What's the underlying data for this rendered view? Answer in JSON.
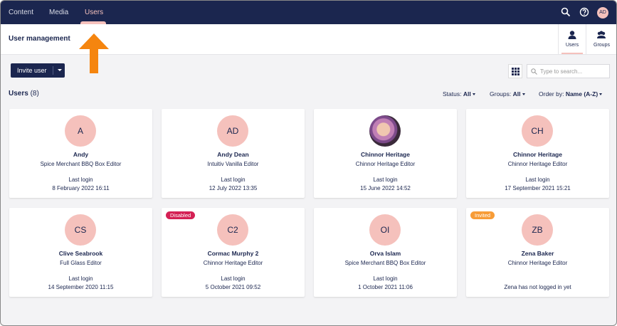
{
  "nav": {
    "items": [
      "Content",
      "Media",
      "Users"
    ],
    "avatar": "AD"
  },
  "header": {
    "title": "User management",
    "tabs": [
      "Users",
      "Groups"
    ]
  },
  "toolbar": {
    "button": "Invite user",
    "search_placeholder": "Type to search..."
  },
  "list": {
    "title": "Users",
    "count": "(8)",
    "filters": [
      {
        "label": "Status:",
        "value": "All"
      },
      {
        "label": "Groups:",
        "value": "All"
      },
      {
        "label": "Order by:",
        "value": "Name (A-Z)"
      }
    ]
  },
  "users": [
    {
      "initials": "A",
      "name": "Andy",
      "group": "Spice Merchant BBQ Box Editor",
      "last_login_label": "Last login",
      "last_login": "8 February 2022 16:11"
    },
    {
      "initials": "AD",
      "name": "Andy Dean",
      "group": "Intuitiv Vanilla Editor",
      "last_login_label": "Last login",
      "last_login": "12 July 2022 13:35"
    },
    {
      "name": "Chinnor Heritage",
      "group": "Chinnor Heritage Editor",
      "last_login_label": "Last login",
      "last_login": "15 June 2022 14:52"
    },
    {
      "initials": "CH",
      "name": "Chinnor Heritage",
      "group": "Chinnor Heritage Editor",
      "last_login_label": "Last login",
      "last_login": "17 September 2021 15:21"
    },
    {
      "initials": "CS",
      "name": "Clive Seabrook",
      "group": "Full Glass Editor",
      "last_login_label": "Last login",
      "last_login": "14 September 2020 11:15"
    },
    {
      "initials": "C2",
      "name": "Cormac Murphy 2",
      "group": "Chinnor Heritage Editor",
      "last_login_label": "Last login",
      "last_login": "5 October 2021 09:52",
      "badge": "Disabled"
    },
    {
      "initials": "OI",
      "name": "Orva Islam",
      "group": "Spice Merchant BBQ Box Editor",
      "last_login_label": "Last login",
      "last_login": "1 October 2021 11:06"
    },
    {
      "initials": "ZB",
      "name": "Zena Baker",
      "group": "Chinnor Heritage Editor",
      "note": "Zena has not logged in yet",
      "badge": "Invited"
    }
  ]
}
